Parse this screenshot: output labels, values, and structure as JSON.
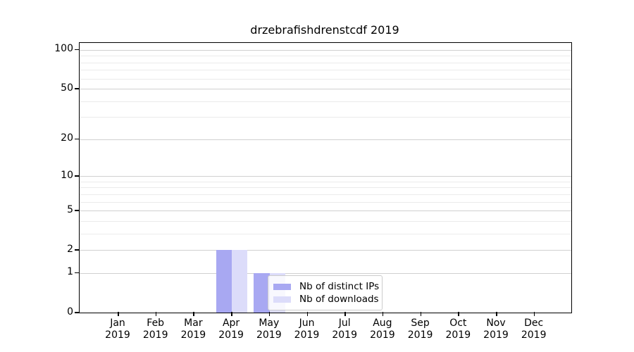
{
  "chart_data": {
    "type": "bar",
    "title": "drzebrafishdrenstcdf 2019",
    "categories": [
      "Jan",
      "Feb",
      "Mar",
      "Apr",
      "May",
      "Jun",
      "Jul",
      "Aug",
      "Sep",
      "Oct",
      "Nov",
      "Dec"
    ],
    "year": "2019",
    "series": [
      {
        "name": "Nb of distinct IPs",
        "color": "#a8a8f2",
        "values": [
          0,
          0,
          0,
          2,
          1,
          0,
          0,
          0,
          0,
          0,
          0,
          0
        ]
      },
      {
        "name": "Nb of downloads",
        "color": "#dcdcfa",
        "values": [
          0,
          0,
          0,
          2,
          1,
          0,
          0,
          0,
          0,
          0,
          0,
          0
        ]
      }
    ],
    "yscale": "log1p",
    "ylim": [
      0,
      113
    ],
    "yticks": [
      0,
      1,
      2,
      5,
      10,
      20,
      50,
      100
    ],
    "yminorticks": [
      3,
      4,
      6,
      7,
      8,
      9,
      30,
      40,
      60,
      70,
      80,
      90
    ],
    "grid": "on",
    "legend_position": "lower-right-inside",
    "colors": {
      "major_grid": "#d0d0d0",
      "minor_grid": "#ebebeb",
      "axis": "#000000",
      "legend_border": "#cccccc",
      "background": "#ffffff"
    }
  }
}
